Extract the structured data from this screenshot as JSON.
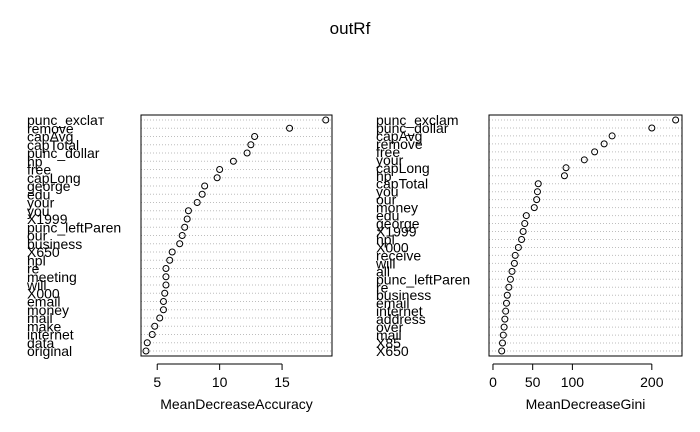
{
  "title": "outRf",
  "colors": {
    "ink": "#000000",
    "guide": "#bebebe",
    "background": "#ffffff"
  },
  "chart_data": [
    {
      "type": "scatter",
      "variant": "dotchart",
      "xlabel": "MeanDecreaseAccuracy",
      "ylabel": "",
      "xlim": [
        3.7,
        19.0
      ],
      "xticks": [
        5,
        10,
        15
      ],
      "grid": "dotted horizontal guide per row",
      "categories": [
        "punc_exclaт",
        "remove",
        "capAvg",
        "capTotal",
        "punc_dollar",
        "hp",
        "free",
        "capLong",
        "george",
        "edu",
        "your",
        "you",
        "X1999",
        "punc_leftParen",
        "our",
        "business",
        "X650",
        "hpl",
        "re",
        "meeting",
        "will",
        "X000",
        "email",
        "money",
        "mail",
        "make",
        "internet",
        "data",
        "original"
      ],
      "values": [
        18.5,
        15.6,
        12.8,
        12.5,
        12.2,
        11.1,
        10.0,
        9.8,
        8.8,
        8.6,
        8.2,
        7.5,
        7.4,
        7.2,
        7.0,
        6.8,
        6.2,
        6.0,
        5.7,
        5.7,
        5.7,
        5.6,
        5.5,
        5.5,
        5.2,
        4.8,
        4.6,
        4.2,
        4.1
      ]
    },
    {
      "type": "scatter",
      "variant": "dotchart",
      "xlabel": "MeanDecreaseGini",
      "ylabel": "",
      "xlim": [
        -5,
        238
      ],
      "xticks": [
        0,
        50,
        100,
        200
      ],
      "grid": "dotted horizontal guide per row",
      "categories": [
        "punc_exclam",
        "punc_dollar",
        "capAvg",
        "remove",
        "free",
        "your",
        "capLong",
        "hp",
        "capTotal",
        "you",
        "our",
        "money",
        "edu",
        "george",
        "X1999",
        "hpl",
        "X000",
        "receive",
        "will",
        "all",
        "punc_leftParen",
        "re",
        "business",
        "email",
        "internet",
        "address",
        "over",
        "mail",
        "X85",
        "X650"
      ],
      "values": [
        230,
        200,
        150,
        140,
        128,
        115,
        92,
        90,
        57,
        56,
        55,
        52,
        42,
        40,
        38,
        36,
        32,
        28,
        27,
        24,
        22,
        20,
        18,
        17,
        16,
        15,
        14,
        13,
        12,
        11
      ]
    }
  ]
}
